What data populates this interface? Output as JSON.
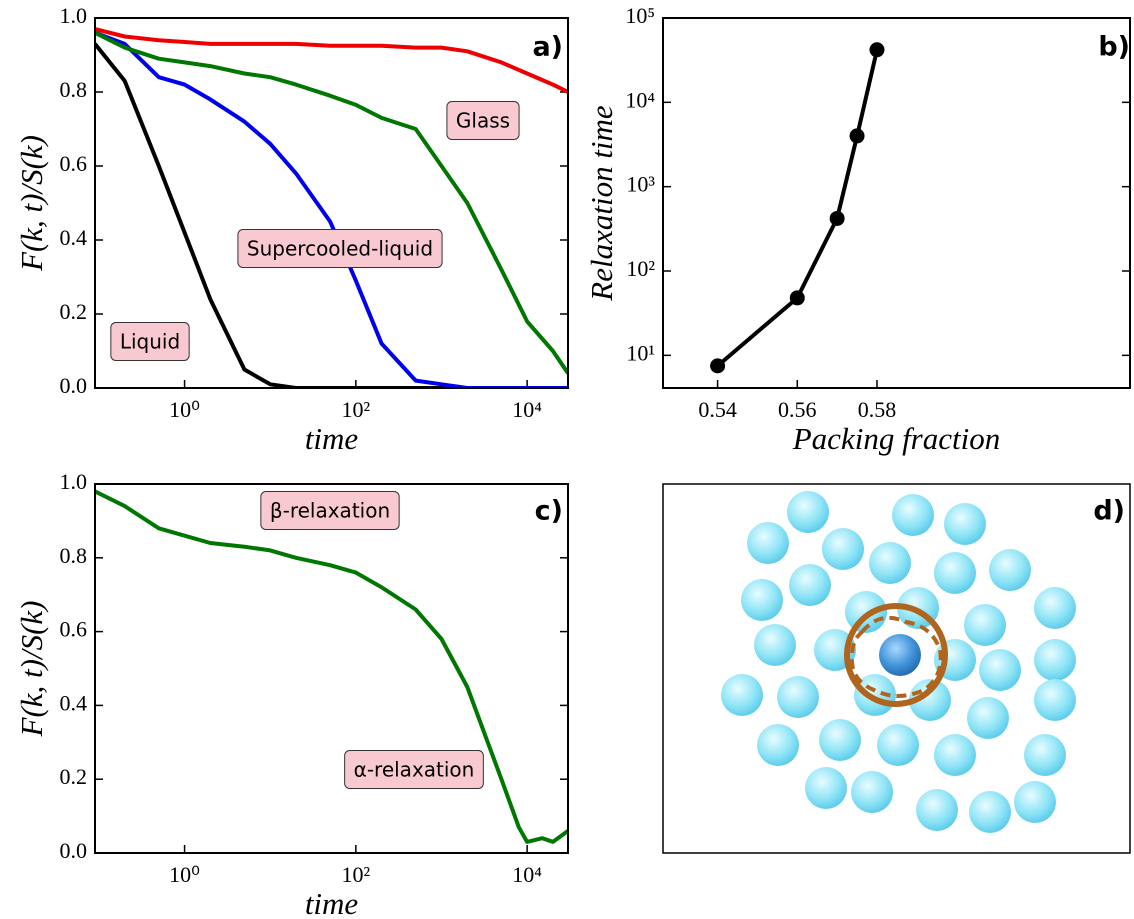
{
  "chart_data": [
    {
      "type": "line",
      "panel_label": "a)",
      "xlabel": "time",
      "ylabel": "F(k, t)/S(k)",
      "xlog": true,
      "x": [
        0.09,
        0.2,
        0.5,
        1,
        2,
        5,
        10,
        20,
        50,
        100,
        200,
        500,
        1000,
        2000,
        5000,
        10000,
        20000,
        30000
      ],
      "series": [
        {
          "color": "#000000",
          "values": [
            0.93,
            0.83,
            0.6,
            0.42,
            0.24,
            0.05,
            0.01,
            0.0,
            0.0,
            0.0,
            0.0,
            0.0,
            0.0,
            0.0,
            0.0,
            0.0,
            0.0,
            0.0
          ]
        },
        {
          "color": "#0000ee",
          "values": [
            0.96,
            0.93,
            0.84,
            0.82,
            0.78,
            0.72,
            0.66,
            0.58,
            0.45,
            0.29,
            0.12,
            0.02,
            0.01,
            0.0,
            0.0,
            0.0,
            0.0,
            0.0
          ]
        },
        {
          "color": "#007700",
          "values": [
            0.96,
            0.92,
            0.89,
            0.88,
            0.87,
            0.85,
            0.84,
            0.82,
            0.79,
            0.765,
            0.73,
            0.7,
            0.6,
            0.5,
            0.32,
            0.18,
            0.1,
            0.04
          ]
        },
        {
          "color": "#ee0000",
          "values": [
            0.97,
            0.95,
            0.94,
            0.935,
            0.93,
            0.93,
            0.93,
            0.93,
            0.925,
            0.925,
            0.925,
            0.92,
            0.92,
            0.91,
            0.88,
            0.85,
            0.82,
            0.8
          ]
        }
      ],
      "annotations": [
        "Glass",
        "Supercooled-liquid",
        "Liquid"
      ],
      "xlim": [
        0.09,
        30000
      ],
      "xticks": [
        {
          "value": 1,
          "label": "10⁰"
        },
        {
          "value": 100,
          "label": "10²"
        },
        {
          "value": 10000,
          "label": "10⁴"
        }
      ],
      "ylim": [
        0,
        1
      ],
      "yticks": [
        {
          "value": 0,
          "label": "0.0"
        },
        {
          "value": 0.2,
          "label": "0.2"
        },
        {
          "value": 0.4,
          "label": "0.4"
        },
        {
          "value": 0.6,
          "label": "0.6"
        },
        {
          "value": 0.8,
          "label": "0.8"
        },
        {
          "value": 1,
          "label": "1.0"
        }
      ]
    },
    {
      "type": "line",
      "panel_label": "b)",
      "xlabel": "Packing fraction",
      "ylabel": "Relaxation time",
      "ylog": true,
      "markers": true,
      "x": [
        0.54,
        0.56,
        0.57,
        0.575,
        0.58
      ],
      "series": [
        {
          "color": "#000000",
          "values": [
            7.5,
            48,
            420,
            4000,
            42000
          ]
        }
      ],
      "xlim": [
        0.5263,
        0.6435
      ],
      "xticks": [
        0.54,
        0.56,
        0.58
      ],
      "ylim": [
        4.1,
        100000
      ],
      "yticks": [
        {
          "value": 10,
          "label": "10¹"
        },
        {
          "value": 100,
          "label": "10²"
        },
        {
          "value": 1000,
          "label": "10³"
        },
        {
          "value": 10000,
          "label": "10⁴"
        },
        {
          "value": 100000,
          "label": "10⁵"
        }
      ]
    },
    {
      "type": "line",
      "panel_label": "c)",
      "xlabel": "time",
      "ylabel": "F(k, t)/S(k)",
      "xlog": true,
      "x": [
        0.09,
        0.2,
        0.5,
        1,
        2,
        5,
        10,
        20,
        50,
        100,
        200,
        500,
        1000,
        2000,
        5000,
        8000,
        10000,
        15000,
        20000,
        30000
      ],
      "series": [
        {
          "color": "#007700",
          "values": [
            0.98,
            0.94,
            0.88,
            0.86,
            0.84,
            0.83,
            0.82,
            0.8,
            0.78,
            0.76,
            0.72,
            0.66,
            0.58,
            0.45,
            0.2,
            0.07,
            0.03,
            0.04,
            0.03,
            0.06
          ]
        }
      ],
      "annotations": [
        "β-relaxation",
        "α-relaxation"
      ],
      "xlim": [
        0.09,
        30000
      ],
      "xticks": [
        {
          "value": 1,
          "label": "10⁰"
        },
        {
          "value": 100,
          "label": "10²"
        },
        {
          "value": 10000,
          "label": "10⁴"
        }
      ],
      "ylim": [
        0,
        1
      ],
      "yticks": [
        {
          "value": 0,
          "label": "0.0"
        },
        {
          "value": 0.2,
          "label": "0.2"
        },
        {
          "value": 0.4,
          "label": "0.4"
        },
        {
          "value": 0.6,
          "label": "0.6"
        },
        {
          "value": 0.8,
          "label": "0.8"
        },
        {
          "value": 1,
          "label": "1.0"
        }
      ]
    },
    {
      "type": "illustration",
      "panel_label": "d)"
    }
  ]
}
